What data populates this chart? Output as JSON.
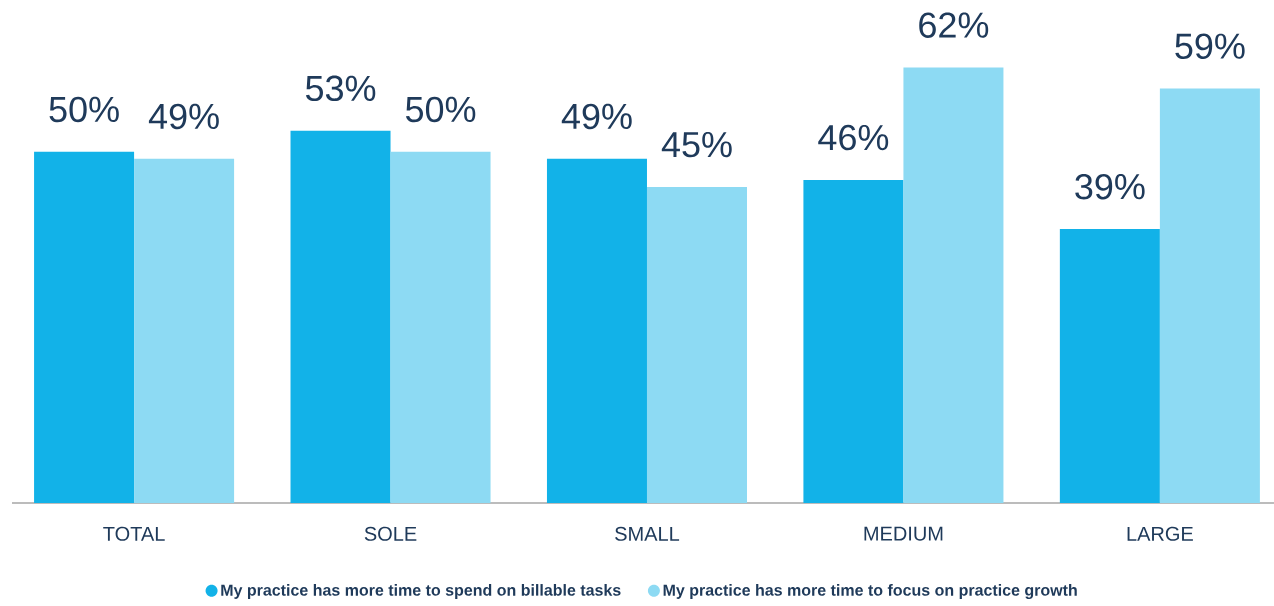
{
  "chart_data": {
    "type": "bar",
    "categories": [
      "TOTAL",
      "SOLE",
      "SMALL",
      "MEDIUM",
      "LARGE"
    ],
    "series": [
      {
        "name": "My practice has more time to spend on billable tasks",
        "color": "#12b2e8",
        "values": [
          50,
          53,
          49,
          46,
          39
        ],
        "value_labels": [
          "50%",
          "53%",
          "49%",
          "46%",
          "39%"
        ]
      },
      {
        "name": "My practice has more time to focus on practice growth",
        "color": "#8ddaf3",
        "values": [
          49,
          50,
          45,
          62,
          59
        ],
        "value_labels": [
          "49%",
          "50%",
          "45%",
          "62%",
          "59%"
        ]
      }
    ],
    "legend": "bottom",
    "tick_labels": "x"
  }
}
